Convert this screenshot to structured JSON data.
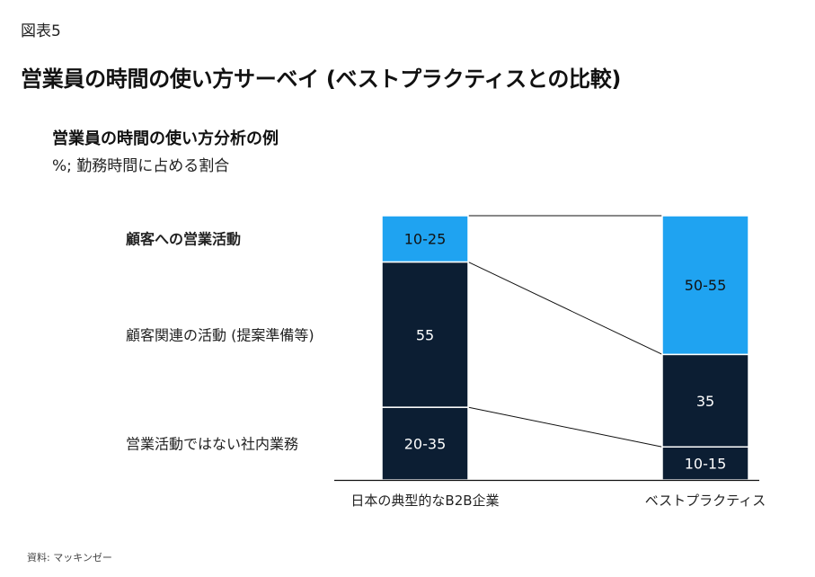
{
  "figure_label": "図表5",
  "main_title": "営業員の時間の使い方サーベイ (ベストプラクティスとの比較)",
  "chart_title": "営業員の時間の使い方分析の例",
  "chart_subtitle": "%; 勤務時間に占める割合",
  "source": "資料: マッキンゼー",
  "chart_data": {
    "type": "bar",
    "stacked": true,
    "unit": "%",
    "categories": [
      "日本の典型的なB2B企業",
      "ベストプラクティス"
    ],
    "series": [
      {
        "name": "営業活動ではない社内業務",
        "labels": [
          "20-35",
          "10-15"
        ],
        "values": [
          27.5,
          12.5
        ],
        "color": "#0c1e33",
        "label_bold": false
      },
      {
        "name": "顧客関連の活動 (提案準備等)",
        "labels": [
          "55",
          "35"
        ],
        "values": [
          55,
          35
        ],
        "color": "#0c1e33",
        "label_bold": false
      },
      {
        "name": "顧客への営業活動",
        "labels": [
          "10-25",
          "50-55"
        ],
        "values": [
          17.5,
          52.5
        ],
        "color": "#1fa3f1",
        "label_bold": true
      }
    ],
    "ylim": [
      0,
      100
    ],
    "legend_placement": "left",
    "grid": false,
    "connector_lines": true
  }
}
